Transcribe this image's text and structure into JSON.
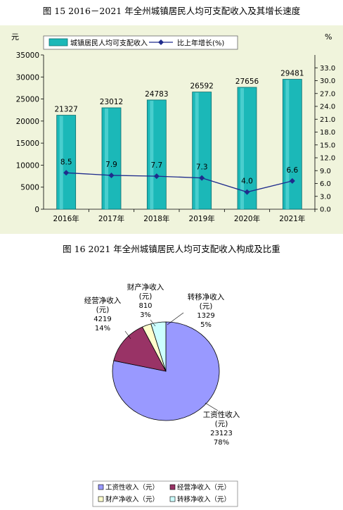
{
  "captions": {
    "fig15": "图 15   2016－2021 年全州城镇居民人均可支配收入及其增长速度",
    "fig16": "图 16    2021 年全州城镇居民人均可支配收入构成及比重"
  },
  "chart_data": [
    {
      "type": "bar+line",
      "title": "图 15   2016－2021 年全州城镇居民人均可支配收入及其增长速度",
      "categories": [
        "2016年",
        "2017年",
        "2018年",
        "2019年",
        "2020年",
        "2021年"
      ],
      "series": [
        {
          "name": "城镇居民人均可支配收入",
          "type": "bar",
          "axis": "left",
          "values": [
            21327,
            23012,
            24783,
            26592,
            27656,
            29481
          ],
          "color": "#1bb8b8"
        },
        {
          "name": "比上年增长(%)",
          "type": "line",
          "axis": "right",
          "values": [
            8.5,
            7.9,
            7.7,
            7.3,
            4.0,
            6.6
          ],
          "color": "#1f2b8c"
        }
      ],
      "ylabel": "元",
      "y2label": "%",
      "ylim": [
        0,
        35000
      ],
      "y2lim": [
        0,
        36
      ],
      "yticks": [
        0,
        5000,
        10000,
        15000,
        20000,
        25000,
        30000,
        35000
      ],
      "y2ticks": [
        "0.0",
        "3.0",
        "6.0",
        "9.0",
        "12.0",
        "15.0",
        "18.0",
        "21.0",
        "24.0",
        "27.0",
        "30.0",
        "33.0"
      ],
      "y2tick_values": [
        0,
        3,
        6,
        9,
        12,
        15,
        18,
        21,
        24,
        27,
        30,
        33
      ],
      "bar_labels": [
        "21327",
        "23012",
        "24783",
        "26592",
        "27656",
        "29481"
      ],
      "line_labels": [
        "8.5",
        "7.9",
        "7.7",
        "7.3",
        "4.0",
        "6.6"
      ],
      "legend": "top",
      "grid": false,
      "background": "#f0f4dc"
    },
    {
      "type": "pie",
      "title": "图 16    2021 年全州城镇居民人均可支配收入构成及比重",
      "unit_label": "(元)",
      "slices": [
        {
          "name": "工资性收入",
          "value": 23123,
          "percent": "78%",
          "color": "#9999ff"
        },
        {
          "name": "经营净收入",
          "value": 4219,
          "percent": "14%",
          "color": "#993366"
        },
        {
          "name": "财产净收入",
          "value": 810,
          "percent": "3%",
          "color": "#ffffcc"
        },
        {
          "name": "转移净收入",
          "value": 1329,
          "percent": "5%",
          "color": "#ccffff"
        }
      ],
      "legend_labels": [
        "工资性收入（元）",
        "经营净收入（元）",
        "财产净收入（元）",
        "转移净收入（元）"
      ],
      "legend": "bottom"
    }
  ]
}
